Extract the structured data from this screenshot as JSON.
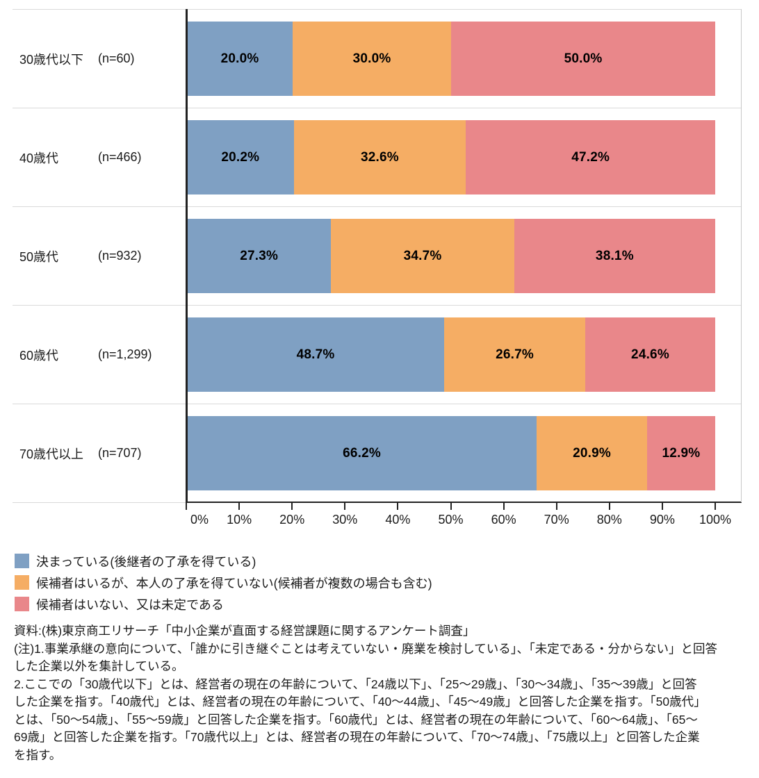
{
  "chart_data": {
    "type": "bar",
    "orientation": "horizontal",
    "stacked": true,
    "percent_total": 100,
    "grid": "row-separators",
    "legend_position": "bottom-left",
    "xlabel": "",
    "ylabel": "",
    "xlim": [
      0,
      100
    ],
    "x_ticks": [
      "0%",
      "10%",
      "20%",
      "30%",
      "40%",
      "50%",
      "60%",
      "70%",
      "80%",
      "90%",
      "100%"
    ],
    "categories": [
      {
        "label": "30歳代以下",
        "n": "(n=60)"
      },
      {
        "label": "40歳代",
        "n": "(n=466)"
      },
      {
        "label": "50歳代",
        "n": "(n=932)"
      },
      {
        "label": "60歳代",
        "n": "(n=1,299)"
      },
      {
        "label": "70歳代以上",
        "n": "(n=707)"
      }
    ],
    "series": [
      {
        "name": "決まっている(後継者の了承を得ている)",
        "color": "#7FA0C3",
        "values": [
          20.0,
          20.2,
          27.3,
          48.7,
          66.2
        ]
      },
      {
        "name": "候補者はいるが、本人の了承を得ていない(候補者が複数の場合も含む)",
        "color": "#F5AD64",
        "values": [
          30.0,
          32.6,
          34.7,
          26.7,
          20.9
        ]
      },
      {
        "name": "候補者はいない、又は未定である",
        "color": "#E9878A",
        "values": [
          50.0,
          47.2,
          38.1,
          24.6,
          12.9
        ]
      }
    ],
    "value_labels": [
      [
        "20.0%",
        "30.0%",
        "50.0%"
      ],
      [
        "20.2%",
        "32.6%",
        "47.2%"
      ],
      [
        "27.3%",
        "34.7%",
        "38.1%"
      ],
      [
        "48.7%",
        "26.7%",
        "24.6%"
      ],
      [
        "66.2%",
        "20.9%",
        "12.9%"
      ]
    ]
  },
  "colors": {
    "axis": "#222222",
    "separator": "#d9d9d9",
    "plot_right_border": "#c8c8c8",
    "value_label": "#000000",
    "text": "#1a1a1a"
  },
  "notes": {
    "lines": [
      "資料:(株)東京商工リサーチ「中小企業が直面する経営課題に関するアンケート調査」",
      "(注)1.事業承継の意向について、「誰かに引き継ぐことは考えていない・廃業を検討している」、「未定である・分からない」と回答",
      "した企業以外を集計している。",
      "2.ここでの「30歳代以下」とは、経営者の現在の年齢について、「24歳以下」、「25〜29歳」、「30〜34歳」、「35〜39歳」と回答",
      "した企業を指す。「40歳代」とは、経営者の現在の年齢について、「40〜44歳」、「45〜49歳」と回答した企業を指す。「50歳代」",
      "とは、「50〜54歳」、「55〜59歳」と回答した企業を指す。「60歳代」とは、経営者の現在の年齢について、「60〜64歳」、「65〜",
      "69歳」と回答した企業を指す。「70歳代以上」とは、経営者の現在の年齢について、「70〜74歳」、「75歳以上」と回答した企業",
      "を指す。"
    ]
  }
}
